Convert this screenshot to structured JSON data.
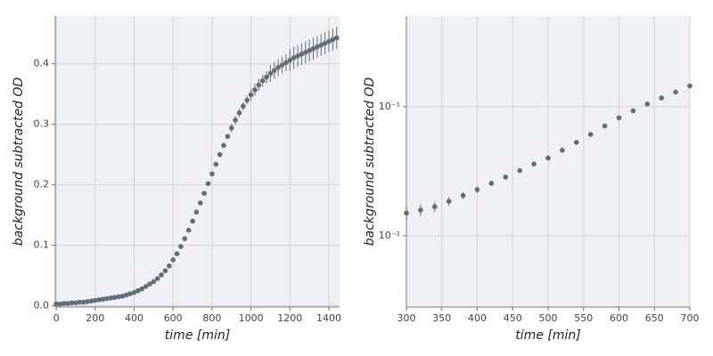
{
  "chart_data": [
    {
      "type": "scatter",
      "xlabel": "time [min]",
      "ylabel": "background subtracted OD",
      "color": "#5f6e78",
      "grid": true,
      "log_y": false,
      "xlim": [
        -5,
        1455
      ],
      "ylim": [
        -0.002,
        0.479
      ],
      "xticks": [
        0,
        200,
        400,
        600,
        800,
        1000,
        1200,
        1400
      ],
      "yticks": [
        {
          "value": 0,
          "label": "0.0"
        },
        {
          "value": 0.1,
          "label": "0.1"
        },
        {
          "value": 0.2,
          "label": "0.2"
        },
        {
          "value": 0.3,
          "label": "0.3"
        },
        {
          "value": 0.4,
          "label": "0.4"
        }
      ],
      "x": [
        0,
        20,
        40,
        60,
        80,
        100,
        120,
        140,
        160,
        180,
        200,
        220,
        240,
        260,
        280,
        300,
        320,
        340,
        360,
        380,
        400,
        420,
        440,
        460,
        480,
        500,
        520,
        540,
        560,
        580,
        600,
        620,
        640,
        660,
        680,
        700,
        720,
        740,
        760,
        780,
        800,
        820,
        840,
        860,
        880,
        900,
        920,
        940,
        960,
        980,
        1000,
        1020,
        1040,
        1060,
        1080,
        1100,
        1120,
        1140,
        1160,
        1180,
        1200,
        1220,
        1240,
        1260,
        1280,
        1300,
        1320,
        1340,
        1360,
        1380,
        1400,
        1420,
        1440
      ],
      "values": [
        0.003,
        0.003,
        0.004,
        0.004,
        0.005,
        0.005,
        0.006,
        0.006,
        0.007,
        0.008,
        0.009,
        0.01,
        0.011,
        0.012,
        0.013,
        0.014,
        0.015,
        0.016,
        0.018,
        0.02,
        0.022,
        0.025,
        0.028,
        0.032,
        0.036,
        0.04,
        0.045,
        0.051,
        0.058,
        0.066,
        0.076,
        0.086,
        0.098,
        0.111,
        0.125,
        0.14,
        0.155,
        0.17,
        0.186,
        0.202,
        0.218,
        0.234,
        0.25,
        0.265,
        0.28,
        0.294,
        0.307,
        0.319,
        0.33,
        0.34,
        0.349,
        0.357,
        0.365,
        0.372,
        0.378,
        0.384,
        0.389,
        0.394,
        0.398,
        0.402,
        0.406,
        0.41,
        0.413,
        0.416,
        0.419,
        0.422,
        0.425,
        0.428,
        0.431,
        0.434,
        0.437,
        0.44,
        0.443
      ],
      "errors": [
        0.001,
        0.001,
        0.001,
        0.001,
        0.001,
        0.001,
        0.001,
        0.001,
        0.001,
        0.001,
        0.001,
        0.001,
        0.001,
        0.001,
        0.001,
        0.001,
        0.001,
        0.001,
        0.001,
        0.001,
        0.001,
        0.001,
        0.001,
        0.001,
        0.001,
        0.001,
        0.001,
        0.001,
        0.001,
        0.001,
        0.002,
        0.002,
        0.002,
        0.002,
        0.002,
        0.002,
        0.002,
        0.002,
        0.002,
        0.002,
        0.004,
        0.004,
        0.004,
        0.004,
        0.004,
        0.007,
        0.007,
        0.007,
        0.007,
        0.007,
        0.01,
        0.01,
        0.01,
        0.01,
        0.01,
        0.014,
        0.014,
        0.014,
        0.014,
        0.014,
        0.018,
        0.018,
        0.018,
        0.018,
        0.018,
        0.018,
        0.018,
        0.018,
        0.018,
        0.018,
        0.018,
        0.018,
        0.018
      ]
    },
    {
      "type": "scatter",
      "xlabel": "time [min]",
      "ylabel": "background subtracted OD",
      "color": "#5f6e78",
      "grid": true,
      "log_y": true,
      "xlim": [
        300,
        700
      ],
      "ylim": [
        0.0028,
        0.505
      ],
      "xticks": [
        300,
        350,
        400,
        450,
        500,
        550,
        600,
        650,
        700
      ],
      "yticks": [
        {
          "value": 0.01,
          "label": "10⁻²"
        },
        {
          "value": 0.1,
          "label": "10⁻¹"
        }
      ],
      "x": [
        300,
        320,
        340,
        360,
        380,
        400,
        420,
        440,
        460,
        480,
        500,
        520,
        540,
        560,
        580,
        600,
        620,
        640,
        660,
        680,
        700
      ],
      "values": [
        0.015,
        0.0158,
        0.0168,
        0.0185,
        0.0205,
        0.0228,
        0.0255,
        0.0285,
        0.032,
        0.036,
        0.04,
        0.046,
        0.053,
        0.061,
        0.071,
        0.082,
        0.093,
        0.105,
        0.117,
        0.13,
        0.145
      ],
      "errors": [
        0.0018,
        0.0016,
        0.0015,
        0.0014,
        0.0013,
        0.0013,
        0.0012,
        0.0012,
        0.0012,
        0.0012,
        0.0012,
        0.0012,
        0.0012,
        0.0012,
        0.0012,
        0.0012,
        0.0012,
        0.0012,
        0.0012,
        0.0012,
        0.0012
      ]
    }
  ]
}
